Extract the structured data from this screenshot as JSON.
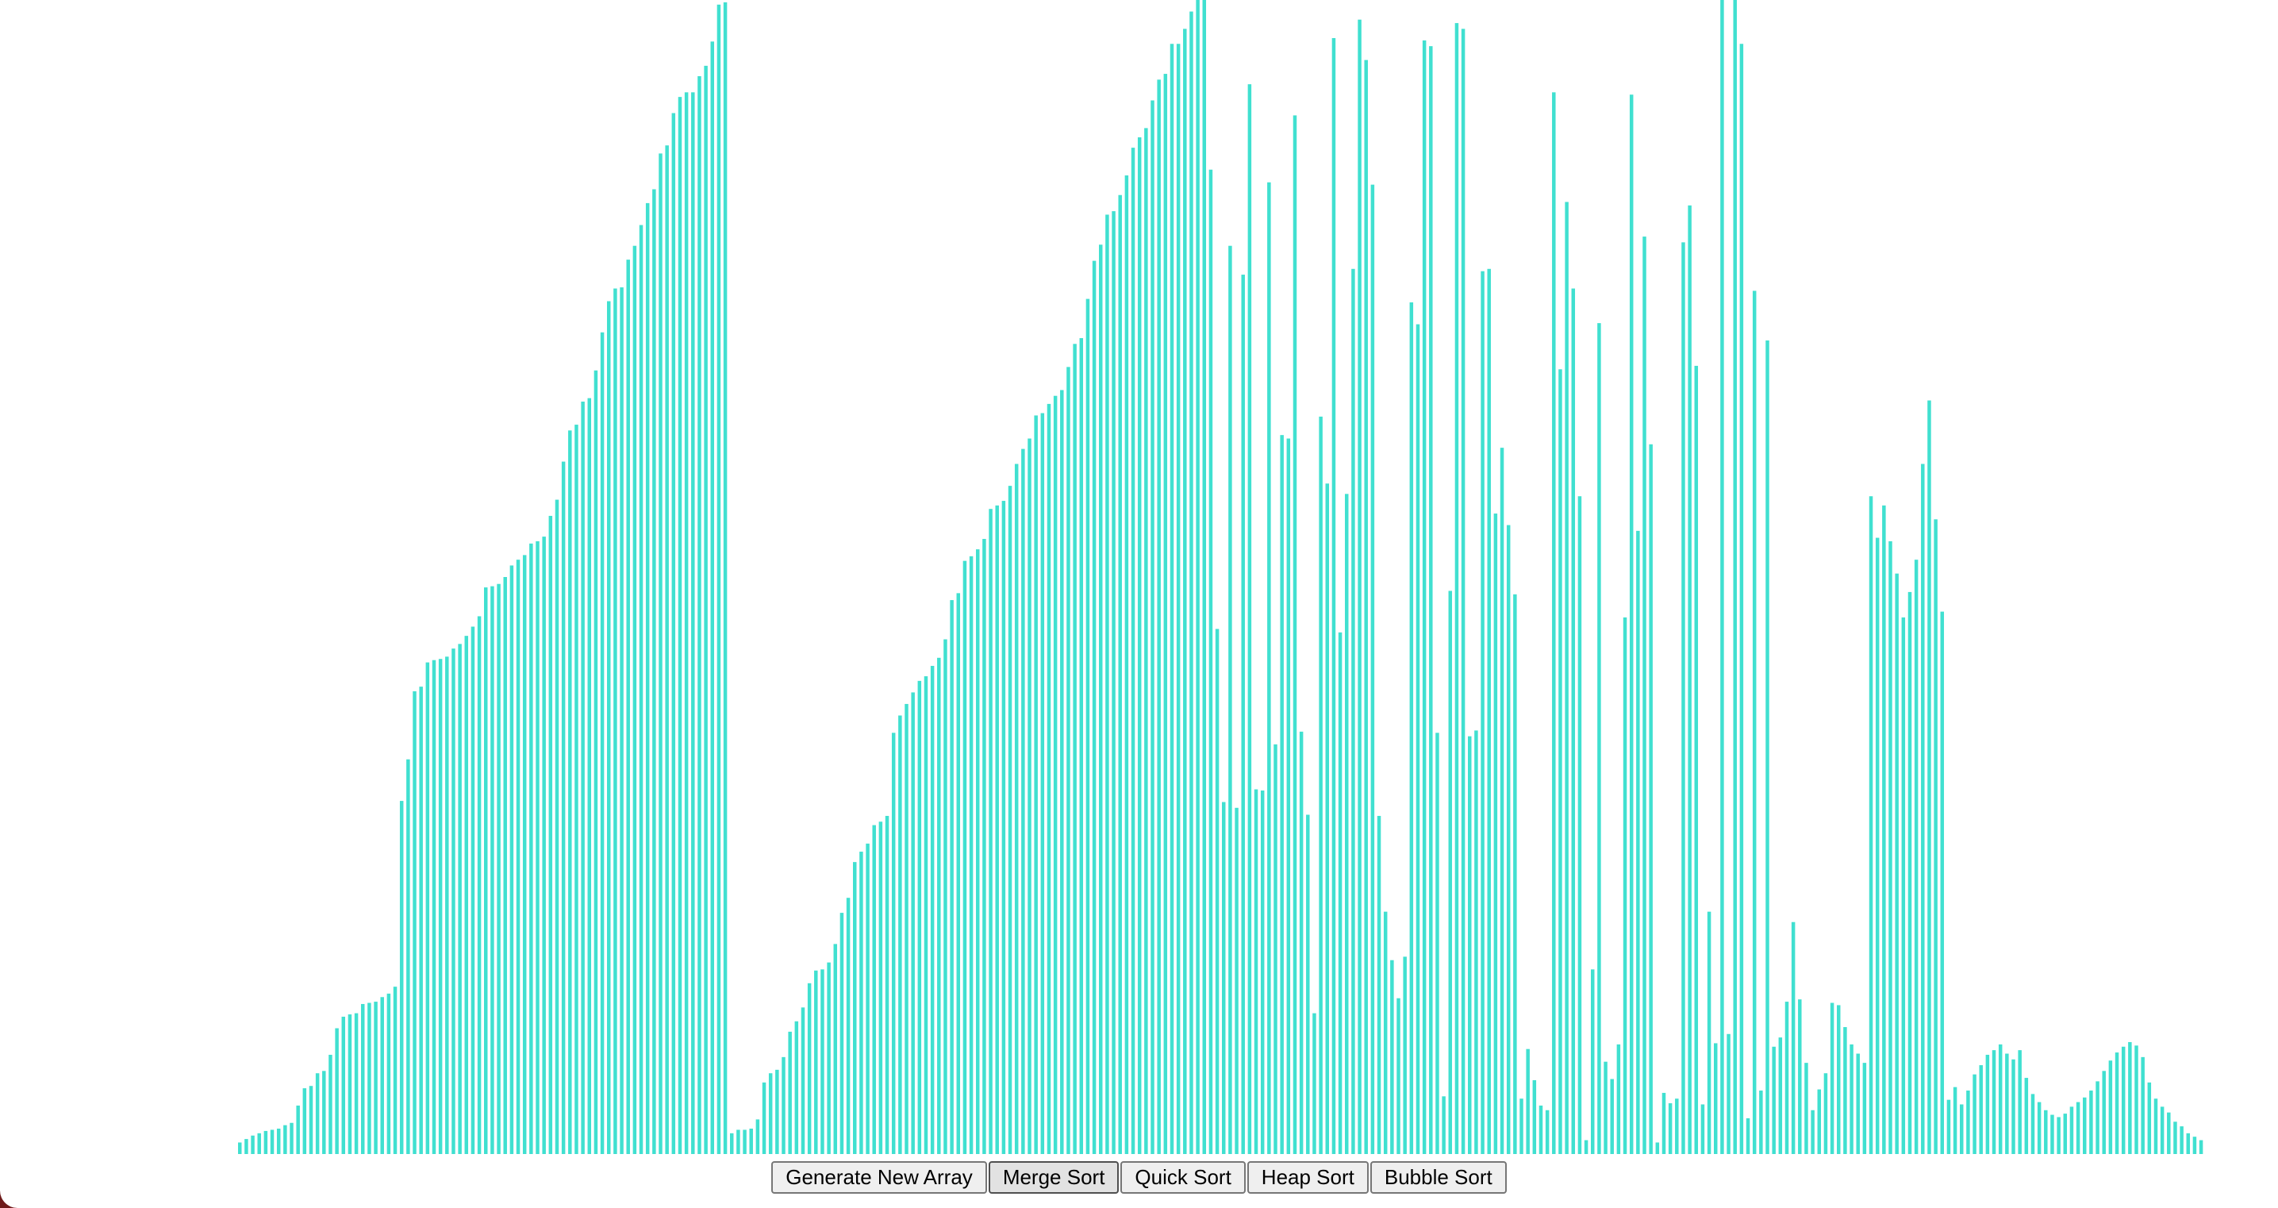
{
  "colors": {
    "bar": "#40e0d0",
    "background": "#ffffff",
    "frame": "#6e1a1a"
  },
  "controls": {
    "generate_label": "Generate New Array",
    "merge_label": "Merge Sort",
    "quick_label": "Quick Sort",
    "heap_label": "Heap Sort",
    "bubble_label": "Bubble Sort",
    "active": "merge"
  },
  "chart_data": {
    "type": "bar",
    "max_value": 1000,
    "values": [
      10,
      13,
      16,
      18,
      20,
      21,
      22,
      25,
      27,
      42,
      57,
      59,
      70,
      72,
      86,
      109,
      119,
      121,
      122,
      130,
      131,
      132,
      136,
      139,
      145,
      306,
      342,
      401,
      405,
      426,
      428,
      429,
      431,
      438,
      442,
      449,
      457,
      466,
      491,
      492,
      494,
      500,
      510,
      515,
      519,
      529,
      531,
      535,
      553,
      567,
      600,
      627,
      632,
      652,
      655,
      679,
      712,
      739,
      750,
      751,
      775,
      787,
      805,
      824,
      836,
      867,
      874,
      902,
      916,
      920,
      920,
      934,
      943,
      964,
      996,
      998,
      18,
      21,
      21,
      22,
      30,
      62,
      70,
      73,
      84,
      106,
      115,
      127,
      148,
      159,
      160,
      166,
      182,
      209,
      222,
      253,
      262,
      269,
      285,
      288,
      293,
      365,
      380,
      390,
      400,
      410,
      414,
      423,
      430,
      446,
      480,
      486,
      514,
      518,
      524,
      533,
      559,
      562,
      566,
      579,
      598,
      611,
      620,
      640,
      642,
      650,
      657,
      662,
      682,
      702,
      707,
      741,
      774,
      788,
      814,
      817,
      831,
      848,
      872,
      881,
      889,
      913,
      931,
      936,
      962,
      962,
      975,
      990,
      1000,
      1000,
      853,
      455,
      305,
      787,
      300,
      762,
      927,
      316,
      315,
      842,
      355,
      623,
      620,
      900,
      366,
      294,
      122,
      639,
      581,
      967,
      452,
      572,
      767,
      983,
      948,
      840,
      293,
      210,
      168,
      135,
      171,
      738,
      719,
      965,
      960,
      365,
      50,
      488,
      980,
      975,
      362,
      367,
      765,
      767,
      555,
      612,
      545,
      485,
      48,
      91,
      64,
      42,
      38,
      920,
      680,
      825,
      750,
      570,
      12,
      160,
      720,
      80,
      65,
      95,
      465,
      918,
      540,
      795,
      615,
      10,
      53,
      44,
      48,
      790,
      822,
      683,
      43,
      210,
      96,
      1000,
      104,
      1000,
      962,
      31,
      748,
      55,
      705,
      93,
      101,
      132,
      201,
      134,
      79,
      38,
      56,
      70,
      131,
      129,
      110,
      95,
      87,
      79,
      570,
      534,
      562,
      531,
      503,
      465,
      487,
      515,
      598,
      653,
      550,
      470,
      47,
      58,
      43,
      55,
      69,
      77,
      86,
      90,
      95,
      87,
      82,
      90,
      66,
      52,
      45,
      38,
      34,
      32,
      35,
      41,
      45,
      49,
      55,
      63,
      72,
      81,
      88,
      93,
      97,
      94,
      84,
      62,
      48,
      41,
      36,
      28,
      24,
      18,
      15,
      12
    ]
  }
}
